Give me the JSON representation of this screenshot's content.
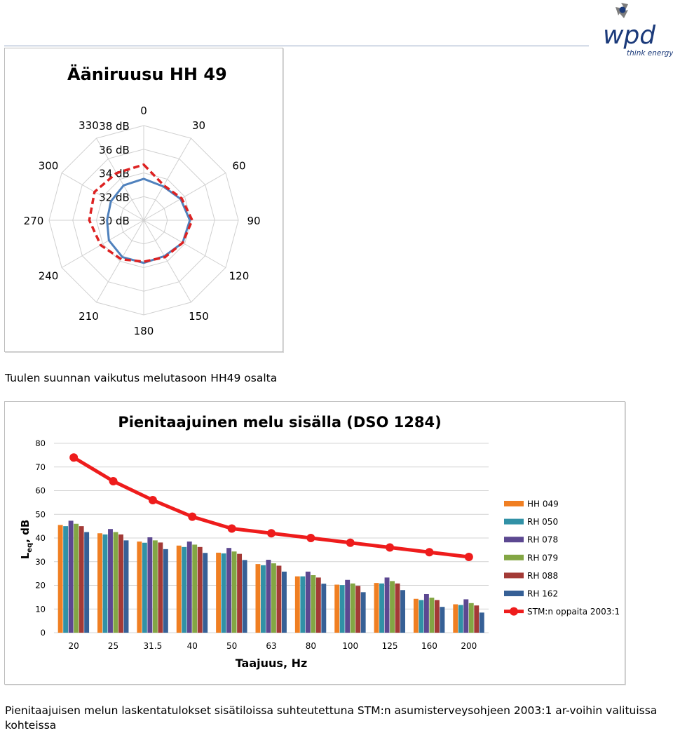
{
  "brand": {
    "name": "wpd",
    "tagline": "think energy",
    "colors": {
      "accent": "#1b3a7a",
      "gray": "#7d7d7d"
    }
  },
  "captions": {
    "wind_direction": "Tuulen suunnan vaikutus melutasoon HH49 osalta",
    "low_frequency": "Pienitaajuisen melun laskentatulokset sisätiloissa suhteutettuna STM:n asumisterveysohjeen 2003:1 ar-voihin valituissa kohteissa"
  },
  "chart_data": [
    {
      "type": "radar",
      "title": "Ääniruusu HH 49",
      "angles": [
        "0",
        "30",
        "60",
        "90",
        "120",
        "150",
        "180",
        "210",
        "240",
        "270",
        "300",
        "330"
      ],
      "radial_ticks": [
        "30 dB",
        "32 dB",
        "34 dB",
        "36 dB",
        "38 dB"
      ],
      "rlim": [
        30,
        38
      ],
      "grid": true,
      "series": [
        {
          "values": [
            33.5,
            33.3,
            33.6,
            33.9,
            33.8,
            33.5,
            33.6,
            33.6,
            33.4,
            33.1,
            33.2,
            33.4
          ],
          "color": "#4f81bd",
          "style": "solid"
        },
        {
          "values": [
            34.7,
            33.4,
            33.7,
            34.1,
            33.8,
            33.6,
            33.5,
            33.8,
            34.2,
            34.6,
            34.8,
            34.6
          ],
          "color": "#dd2222",
          "style": "dashed"
        }
      ]
    },
    {
      "type": "bar",
      "title": "Pienitaajuinen melu sisälla (DSO 1284)",
      "xlabel": "Taajuus, Hz",
      "ylabel": "Leq, dB",
      "ylabel_main": "L",
      "ylabel_sub": "eq",
      "ylabel_unit": ", dB",
      "ylim": [
        0,
        80
      ],
      "yticks": [
        0,
        10,
        20,
        30,
        40,
        50,
        60,
        70,
        80
      ],
      "grid": true,
      "legend": "right",
      "categories": [
        "20",
        "25",
        "31.5",
        "40",
        "50",
        "63",
        "80",
        "100",
        "125",
        "160",
        "200"
      ],
      "series": [
        {
          "name": "HH 049",
          "color": "#f07f22",
          "values": [
            45.5,
            42,
            38.5,
            36.8,
            33.8,
            29,
            23.8,
            20.3,
            21,
            14.3,
            12
          ]
        },
        {
          "name": "RH 050",
          "color": "#3191a6",
          "values": [
            45,
            41.5,
            38,
            36.2,
            33.5,
            28.5,
            23.8,
            20.1,
            20.8,
            13.8,
            11.7
          ]
        },
        {
          "name": "RH 078",
          "color": "#5c4891",
          "values": [
            47.3,
            43.8,
            40.3,
            38.5,
            35.8,
            30.8,
            25.8,
            22.3,
            23.3,
            16.3,
            14.1
          ]
        },
        {
          "name": "RH 079",
          "color": "#83a644",
          "values": [
            46,
            42.5,
            39,
            37.2,
            34.3,
            29.3,
            24.3,
            20.8,
            21.8,
            14.8,
            12.5
          ]
        },
        {
          "name": "RH 088",
          "color": "#a33a36",
          "values": [
            45,
            41.5,
            38.1,
            36.2,
            33.3,
            28.3,
            23.3,
            19.8,
            20.8,
            13.8,
            11.5
          ]
        },
        {
          "name": "RH 162",
          "color": "#366096",
          "values": [
            42.5,
            39,
            35.3,
            33.7,
            30.7,
            25.8,
            20.7,
            17.1,
            18,
            10.9,
            8.5
          ]
        }
      ],
      "line": {
        "name": "STM:n oppaita 2003:1",
        "color": "#ee1c1c",
        "values": [
          74,
          64,
          56,
          49,
          44,
          42,
          40,
          38,
          36,
          34,
          32
        ]
      }
    }
  ]
}
